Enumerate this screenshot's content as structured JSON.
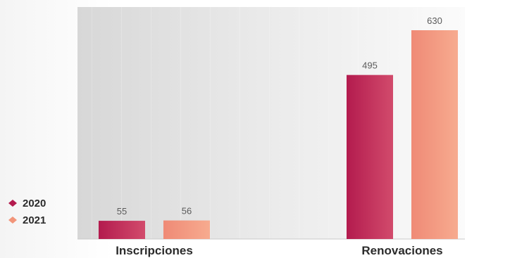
{
  "chart_data": {
    "type": "bar",
    "categories": [
      "Inscripciones",
      "Renovaciones"
    ],
    "series": [
      {
        "name": "2020",
        "values": [
          55,
          495
        ],
        "color": "#b31b4e"
      },
      {
        "name": "2021",
        "values": [
          56,
          630
        ],
        "color": "#f2957a"
      }
    ],
    "xlabel": "",
    "ylabel": "",
    "title": "",
    "ylim": [
      0,
      700
    ],
    "grid": false,
    "legend_position": "bottom-left",
    "value_labels": [
      "55",
      "56",
      "495",
      "630"
    ]
  },
  "legend": {
    "items": [
      {
        "label": "2020",
        "color": "#b31b4e",
        "icon": "diamond-icon"
      },
      {
        "label": "2021",
        "color": "#f2957a",
        "icon": "diamond-icon"
      }
    ]
  }
}
